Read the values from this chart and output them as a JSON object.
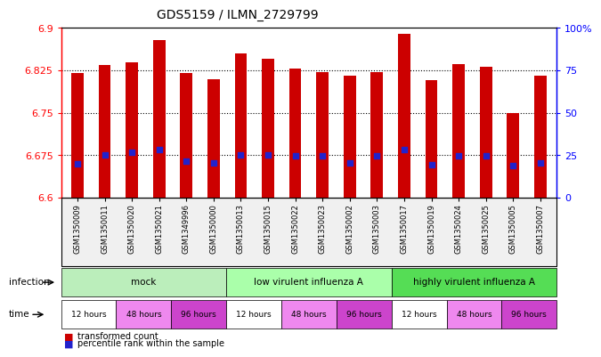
{
  "title": "GDS5159 / ILMN_2729799",
  "samples": [
    "GSM1350009",
    "GSM1350011",
    "GSM1350020",
    "GSM1350021",
    "GSM1349996",
    "GSM1350000",
    "GSM1350013",
    "GSM1350015",
    "GSM1350022",
    "GSM1350023",
    "GSM1350002",
    "GSM1350003",
    "GSM1350017",
    "GSM1350019",
    "GSM1350024",
    "GSM1350025",
    "GSM1350005",
    "GSM1350007"
  ],
  "bar_values": [
    6.82,
    6.835,
    6.84,
    6.878,
    6.82,
    6.81,
    6.855,
    6.845,
    6.828,
    6.822,
    6.815,
    6.822,
    6.89,
    6.808,
    6.836,
    6.832,
    6.75,
    6.815
  ],
  "blue_dot_values": [
    6.66,
    6.675,
    6.68,
    6.685,
    6.664,
    6.661,
    6.675,
    6.675,
    6.674,
    6.674,
    6.661,
    6.674,
    6.685,
    6.658,
    6.674,
    6.674,
    6.657,
    6.661
  ],
  "bar_bottom": 6.6,
  "ylim_left": [
    6.6,
    6.9
  ],
  "ylim_right": [
    0,
    100
  ],
  "yticks_left": [
    6.6,
    6.675,
    6.75,
    6.825,
    6.9
  ],
  "ytick_labels_left": [
    "6.6",
    "6.675",
    "6.75",
    "6.825",
    "6.9"
  ],
  "yticks_right": [
    0,
    25,
    50,
    75,
    100
  ],
  "ytick_labels_right": [
    "0",
    "25",
    "50",
    "75",
    "100%"
  ],
  "grid_lines": [
    6.675,
    6.75,
    6.825
  ],
  "bar_color": "#cc0000",
  "dot_color": "#2222cc",
  "infection_groups": [
    {
      "label": "mock",
      "start": 0,
      "end": 6,
      "color": "#bbeebb"
    },
    {
      "label": "low virulent influenza A",
      "start": 6,
      "end": 12,
      "color": "#aaffaa"
    },
    {
      "label": "highly virulent influenza A",
      "start": 12,
      "end": 18,
      "color": "#55dd55"
    }
  ],
  "time_groups": [
    {
      "label": "12 hours",
      "start": 0,
      "end": 2,
      "color": "#ffffff"
    },
    {
      "label": "48 hours",
      "start": 2,
      "end": 4,
      "color": "#ee88ee"
    },
    {
      "label": "96 hours",
      "start": 4,
      "end": 6,
      "color": "#cc44cc"
    },
    {
      "label": "12 hours",
      "start": 6,
      "end": 8,
      "color": "#ffffff"
    },
    {
      "label": "48 hours",
      "start": 8,
      "end": 10,
      "color": "#ee88ee"
    },
    {
      "label": "96 hours",
      "start": 10,
      "end": 12,
      "color": "#cc44cc"
    },
    {
      "label": "12 hours",
      "start": 12,
      "end": 14,
      "color": "#ffffff"
    },
    {
      "label": "48 hours",
      "start": 14,
      "end": 16,
      "color": "#ee88ee"
    },
    {
      "label": "96 hours",
      "start": 16,
      "end": 18,
      "color": "#cc44cc"
    }
  ],
  "legend_items": [
    "transformed count",
    "percentile rank within the sample"
  ],
  "n_samples": 18,
  "bg_color": "#f0f0f0"
}
